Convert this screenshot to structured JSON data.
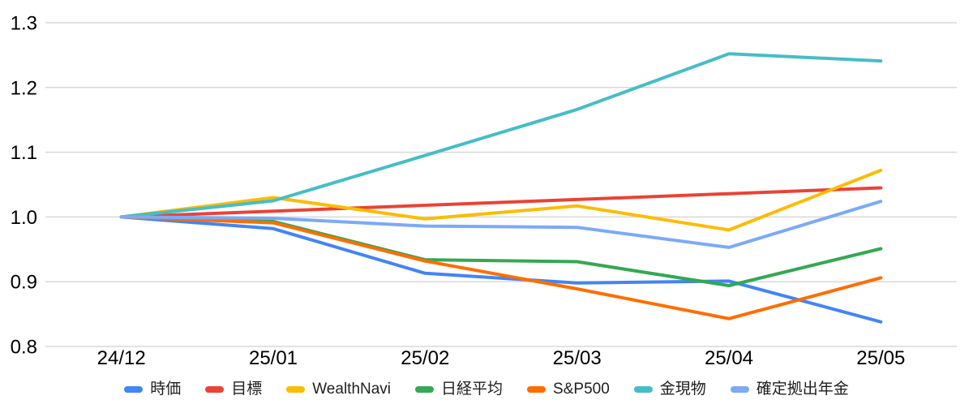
{
  "chart_data": {
    "type": "line",
    "title": "",
    "xlabel": "",
    "ylabel": "",
    "categories": [
      "24/12",
      "25/01",
      "25/02",
      "25/03",
      "25/04",
      "25/05"
    ],
    "series": [
      {
        "name": "時価",
        "color": "#4285F4",
        "values": [
          1.0,
          0.982,
          0.913,
          0.898,
          0.901,
          0.838
        ]
      },
      {
        "name": "目標",
        "color": "#EA4335",
        "values": [
          1.0,
          1.009,
          1.018,
          1.027,
          1.036,
          1.045
        ]
      },
      {
        "name": "WealthNavi",
        "color": "#FBBC04",
        "values": [
          1.0,
          1.03,
          0.997,
          1.017,
          0.98,
          1.072
        ]
      },
      {
        "name": "日経平均",
        "color": "#34A853",
        "values": [
          1.0,
          0.993,
          0.934,
          0.931,
          0.894,
          0.951
        ]
      },
      {
        "name": "S&P500",
        "color": "#FF6D01",
        "values": [
          1.0,
          0.991,
          0.932,
          0.889,
          0.843,
          0.906
        ]
      },
      {
        "name": "金現物",
        "color": "#46BDC6",
        "values": [
          1.0,
          1.025,
          1.095,
          1.166,
          1.252,
          1.241
        ]
      },
      {
        "name": "確定拠出年金",
        "color": "#7BAAF7",
        "values": [
          1.0,
          0.998,
          0.986,
          0.984,
          0.953,
          1.024
        ]
      }
    ],
    "ylim": [
      0.8,
      1.3
    ],
    "ytick_labels": [
      "0.8",
      "0.9",
      "1.0",
      "1.1",
      "1.2",
      "1.3"
    ],
    "grid": "horizontal-only",
    "legend_position": "bottom",
    "markers": false
  },
  "style": {
    "grid_color": "#d9d9d9",
    "axis_label_color": "#000000",
    "legend_text_color": "#1f1f1f",
    "background": "#ffffff",
    "line_width": 4
  }
}
